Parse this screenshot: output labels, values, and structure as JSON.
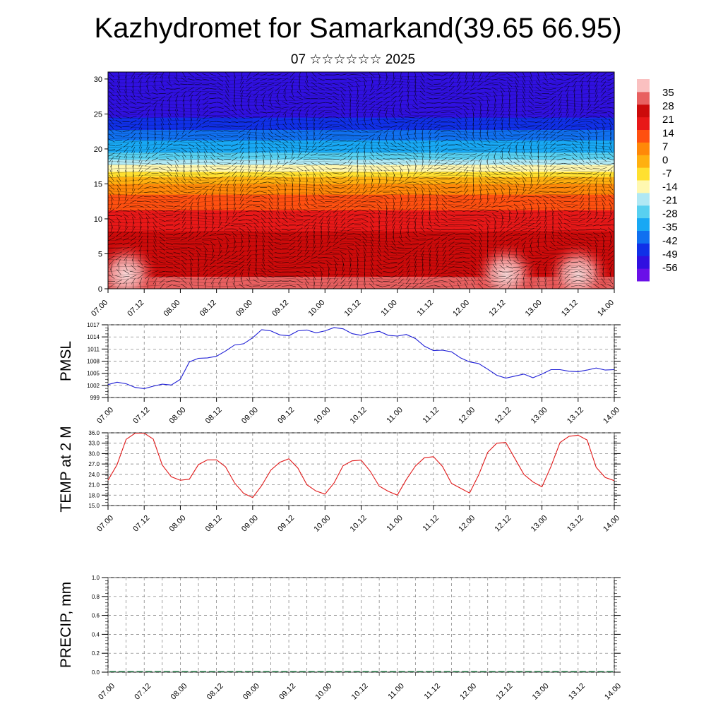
{
  "title": "Kazhydromet for Samarkand(39.65 66.95)",
  "subtitle": "07 ☆☆☆☆☆☆ 2025",
  "colors": {
    "pmsl_line": "#1f1fd6",
    "temp_line": "#e01818",
    "grid": "#777777"
  },
  "chart_data": [
    {
      "type": "heatmap",
      "name": "cross-section",
      "x_ticks": [
        "07.00",
        "07.12",
        "08.00",
        "08.12",
        "09.00",
        "09.12",
        "10.00",
        "10.12",
        "11.00",
        "11.12",
        "12.00",
        "12.12",
        "13.00",
        "13.12",
        "14.00"
      ],
      "y_ticks": [
        0,
        5,
        10,
        15,
        20,
        25,
        30
      ],
      "ylim": [
        0,
        31
      ],
      "colorbar_labels": [
        35,
        28,
        21,
        14,
        7,
        0,
        -7,
        -14,
        -21,
        -28,
        -35,
        -42,
        -49,
        -56
      ],
      "colorbar_range": [
        -63,
        42
      ],
      "colormap": [
        "#6a10e8",
        "#3010e0",
        "#1030e8",
        "#1070f0",
        "#18a8f4",
        "#58d0f0",
        "#b0e8f4",
        "#fff8b0",
        "#ffe030",
        "#ffb010",
        "#ff8808",
        "#ff5010",
        "#e81818",
        "#cc0a0a",
        "#e86060",
        "#fac0c0"
      ],
      "temperature_profile": {
        "z": [
          0,
          3,
          6,
          9,
          12,
          14,
          15,
          16,
          17,
          18,
          19,
          21,
          23,
          24,
          25,
          27,
          29,
          31
        ],
        "t": [
          30,
          28,
          26,
          21,
          14,
          8,
          3,
          -3,
          -12,
          -20,
          -28,
          -36,
          -44,
          -49,
          -51,
          -55,
          -56,
          -56
        ]
      },
      "warm_spots": [
        {
          "x": "07.06",
          "z": 2,
          "t": 34
        },
        {
          "x": "12.12",
          "z": 2,
          "t": 33
        },
        {
          "x": "13.12",
          "z": 2,
          "t": 34
        }
      ]
    },
    {
      "type": "line",
      "ylabel": "PMSL",
      "x_ticks": [
        "07.00",
        "07.12",
        "08.00",
        "08.12",
        "09.00",
        "09.12",
        "10.00",
        "10.12",
        "11.00",
        "11.12",
        "12.00",
        "12.12",
        "13.00",
        "13.12",
        "14.00"
      ],
      "y_ticks": [
        999,
        1002,
        1005,
        1008,
        1011,
        1014,
        1017
      ],
      "ylim": [
        999,
        1017
      ],
      "x_hours": [
        0,
        3,
        6,
        9,
        12,
        15,
        18,
        21,
        24,
        27,
        30,
        33,
        36,
        39,
        42,
        45,
        48,
        51,
        54,
        57,
        60,
        63,
        66,
        69,
        72,
        75,
        78,
        81,
        84,
        87,
        90,
        93,
        96,
        99,
        102,
        105,
        108,
        111,
        114,
        117,
        120,
        123,
        126,
        129,
        132,
        135,
        138,
        141,
        144,
        147,
        150,
        153,
        156,
        159,
        162,
        165,
        168
      ],
      "values": [
        1002.2,
        1002.8,
        1002.4,
        1001.5,
        1001.2,
        1001.8,
        1002.3,
        1002.1,
        1003.5,
        1007.8,
        1008.7,
        1008.8,
        1009.2,
        1010.5,
        1012.0,
        1012.3,
        1013.8,
        1015.8,
        1015.5,
        1014.5,
        1014.3,
        1015.5,
        1015.7,
        1015.0,
        1015.5,
        1016.3,
        1016.0,
        1014.8,
        1014.4,
        1015.0,
        1015.4,
        1014.4,
        1014.2,
        1014.6,
        1013.6,
        1011.7,
        1010.6,
        1010.7,
        1010.3,
        1008.8,
        1007.8,
        1007.4,
        1006.0,
        1004.5,
        1003.8,
        1004.3,
        1004.8,
        1003.9,
        1004.8,
        1005.9,
        1005.9,
        1005.5,
        1005.4,
        1005.8,
        1006.3,
        1005.8,
        1005.9
      ]
    },
    {
      "type": "line",
      "ylabel": "TEMP at 2 M",
      "x_ticks": [
        "07.00",
        "07.12",
        "08.00",
        "08.12",
        "09.00",
        "09.12",
        "10.00",
        "10.12",
        "11.00",
        "11.12",
        "12.00",
        "12.12",
        "13.00",
        "13.12",
        "14.00"
      ],
      "y_ticks": [
        "15.0",
        "18.0",
        "21.0",
        "24.0",
        "27.0",
        "30.0",
        "33.0",
        "36.0"
      ],
      "ylim": [
        15,
        36
      ],
      "x_hours": [
        0,
        3,
        6,
        9,
        12,
        15,
        18,
        21,
        24,
        27,
        30,
        33,
        36,
        39,
        42,
        45,
        48,
        51,
        54,
        57,
        60,
        63,
        66,
        69,
        72,
        75,
        78,
        81,
        84,
        87,
        90,
        93,
        96,
        99,
        102,
        105,
        108,
        111,
        114,
        117,
        120,
        123,
        126,
        129,
        132,
        135,
        138,
        141,
        144,
        147,
        150,
        153,
        156,
        159,
        162,
        165,
        168
      ],
      "values": [
        22.3,
        26.8,
        34.1,
        35.9,
        35.9,
        34.2,
        26.7,
        23.3,
        22.3,
        22.6,
        26.8,
        28.2,
        28.2,
        26.2,
        21.5,
        18.5,
        17.3,
        20.8,
        25.2,
        27.5,
        28.5,
        25.8,
        21.0,
        19.2,
        18.3,
        21.5,
        26.5,
        27.9,
        28.1,
        24.9,
        20.6,
        19.1,
        18.0,
        22.5,
        26.4,
        28.8,
        29.1,
        26.3,
        21.4,
        20.0,
        18.6,
        23.8,
        30.4,
        33.0,
        33.2,
        28.6,
        24.0,
        21.8,
        20.4,
        26.3,
        33.2,
        35.0,
        35.3,
        33.9,
        26.0,
        23.1,
        22.2
      ]
    },
    {
      "type": "bar",
      "ylabel": "PRECIP, mm",
      "x_ticks": [
        "07.00",
        "07.12",
        "08.00",
        "08.12",
        "09.00",
        "09.12",
        "10.00",
        "10.12",
        "11.00",
        "11.12",
        "12.00",
        "12.12",
        "13.00",
        "13.12",
        "14.00"
      ],
      "y_ticks": [
        "0.0",
        "0.2",
        "0.4",
        "0.6",
        "0.8",
        "1.0"
      ],
      "ylim": [
        0,
        1
      ],
      "values": [
        0,
        0,
        0,
        0,
        0,
        0,
        0,
        0,
        0,
        0,
        0,
        0,
        0,
        0,
        0,
        0,
        0,
        0,
        0,
        0,
        0,
        0,
        0,
        0,
        0,
        0,
        0,
        0,
        0,
        0,
        0,
        0,
        0,
        0,
        0,
        0,
        0,
        0,
        0,
        0,
        0,
        0,
        0,
        0,
        0,
        0,
        0,
        0,
        0,
        0,
        0,
        0,
        0,
        0,
        0,
        0
      ]
    }
  ]
}
